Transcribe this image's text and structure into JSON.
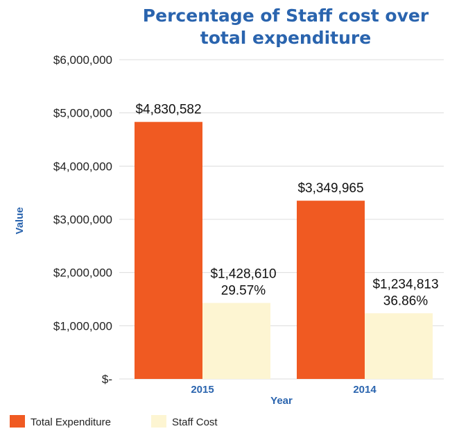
{
  "chart_data": {
    "type": "bar",
    "title": [
      "Percentage of Staff cost over",
      "total expenditure"
    ],
    "xlabel": "Year",
    "ylabel": "Value",
    "categories": [
      "2015",
      "2014"
    ],
    "series": [
      {
        "name": "Total Expenditure",
        "color": "#f05a22",
        "values": [
          4830582,
          3349965
        ],
        "labels": [
          [
            "$4,830,582"
          ],
          [
            "$3,349,965"
          ]
        ]
      },
      {
        "name": "Staff Cost",
        "color": "#fdf5d2",
        "values": [
          1428610,
          1234813
        ],
        "labels": [
          [
            "$1,428,610",
            "29.57%"
          ],
          [
            "$1,234,813",
            "36.86%"
          ]
        ]
      }
    ],
    "ylim": [
      0,
      6000000
    ],
    "yticks": [
      {
        "value": 0,
        "label": "$-"
      },
      {
        "value": 1000000,
        "label": "$1,000,000"
      },
      {
        "value": 2000000,
        "label": "$2,000,000"
      },
      {
        "value": 3000000,
        "label": "$3,000,000"
      },
      {
        "value": 4000000,
        "label": "$4,000,000"
      },
      {
        "value": 5000000,
        "label": "$5,000,000"
      },
      {
        "value": 6000000,
        "label": "$6,000,000"
      }
    ],
    "grid": true,
    "legend_position": "bottom-left"
  }
}
